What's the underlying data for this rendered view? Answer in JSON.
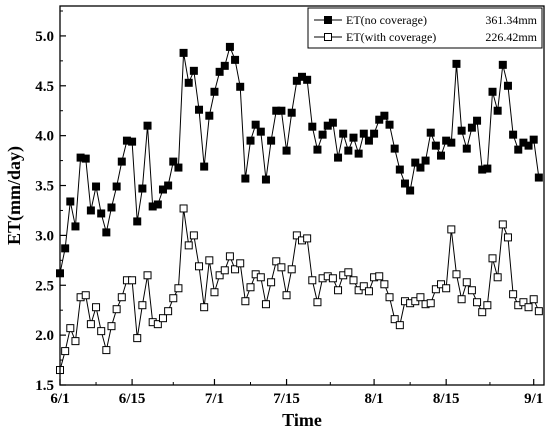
{
  "chart_data": {
    "type": "line",
    "xlabel": "Time",
    "ylabel": "ET(mm/day)",
    "ylim": [
      1.5,
      5.3
    ],
    "x_ticks": [
      {
        "day": 0,
        "label": "6/1"
      },
      {
        "day": 14,
        "label": "6/15"
      },
      {
        "day": 30,
        "label": "7/1"
      },
      {
        "day": 44,
        "label": "7/15"
      },
      {
        "day": 61,
        "label": "8/1"
      },
      {
        "day": 75,
        "label": "8/15"
      },
      {
        "day": 92,
        "label": "9/1"
      }
    ],
    "xlim": [
      0,
      94
    ],
    "y_ticks": [
      "1.5",
      "2.0",
      "2.5",
      "3.0",
      "3.5",
      "4.0",
      "4.5",
      "5.0"
    ],
    "y_tick_values": [
      1.5,
      2.0,
      2.5,
      3.0,
      3.5,
      4.0,
      4.5,
      5.0
    ],
    "legend_position": "top-right",
    "series": [
      {
        "name": "ET(no coverage)",
        "total": "361.34mm",
        "marker": "filled-square",
        "color": "#000000",
        "values": [
          2.62,
          2.87,
          3.34,
          3.09,
          3.78,
          3.77,
          3.25,
          3.49,
          3.22,
          3.03,
          3.28,
          3.49,
          3.74,
          3.95,
          3.94,
          3.14,
          3.47,
          4.1,
          3.29,
          3.31,
          3.46,
          3.5,
          3.74,
          3.68,
          4.83,
          4.53,
          4.65,
          4.26,
          3.69,
          4.2,
          4.44,
          4.64,
          4.7,
          4.89,
          4.76,
          4.49,
          3.57,
          3.95,
          4.11,
          4.04,
          3.56,
          3.95,
          4.25,
          4.25,
          3.85,
          4.23,
          4.55,
          4.59,
          4.56,
          4.09,
          3.86,
          4.01,
          4.1,
          4.13,
          3.78,
          4.02,
          3.85,
          3.98,
          3.82,
          4.02,
          3.95,
          4.02,
          4.16,
          4.2,
          4.11,
          3.87,
          3.66,
          3.52,
          3.45,
          3.73,
          3.68,
          3.75,
          4.03,
          3.9,
          3.8,
          3.95,
          3.93,
          4.72,
          4.05,
          3.87,
          4.08,
          4.15,
          3.66,
          3.67,
          4.44,
          4.25,
          4.71,
          4.5,
          4.01,
          3.86,
          3.93,
          3.9,
          3.96,
          3.58
        ]
      },
      {
        "name": "ET(with coverage)",
        "total": "226.42mm",
        "marker": "open-square",
        "color": "#000000",
        "values": [
          1.65,
          1.84,
          2.07,
          1.94,
          2.38,
          2.4,
          2.11,
          2.28,
          2.04,
          1.85,
          2.09,
          2.26,
          2.38,
          2.55,
          2.55,
          1.97,
          2.3,
          2.6,
          2.13,
          2.11,
          2.17,
          2.24,
          2.37,
          2.47,
          3.27,
          2.9,
          3.0,
          2.69,
          2.28,
          2.75,
          2.43,
          2.6,
          2.65,
          2.79,
          2.66,
          2.72,
          2.34,
          2.48,
          2.61,
          2.58,
          2.31,
          2.53,
          2.74,
          2.68,
          2.4,
          2.66,
          3.0,
          2.95,
          2.97,
          2.55,
          2.33,
          2.57,
          2.59,
          2.57,
          2.45,
          2.6,
          2.63,
          2.55,
          2.45,
          2.49,
          2.44,
          2.58,
          2.59,
          2.51,
          2.38,
          2.16,
          2.1,
          2.34,
          2.32,
          2.34,
          2.38,
          2.31,
          2.32,
          2.46,
          2.51,
          2.47,
          3.06,
          2.61,
          2.36,
          2.53,
          2.45,
          2.33,
          2.23,
          2.3,
          2.77,
          2.58,
          3.11,
          2.98,
          2.41,
          2.3,
          2.33,
          2.28,
          2.36,
          2.24
        ]
      }
    ]
  }
}
